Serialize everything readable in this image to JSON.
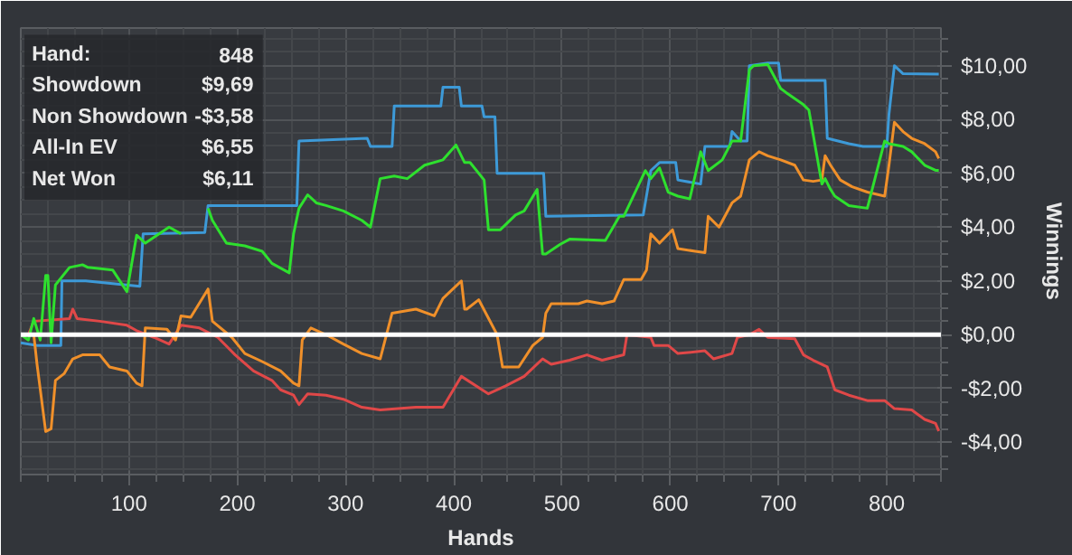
{
  "chart_data": {
    "type": "line",
    "xlabel": "Hands",
    "ylabel": "Winnings",
    "xlim": [
      0,
      850
    ],
    "ylim": [
      -5.2,
      11.4
    ],
    "xticks": [
      100,
      200,
      300,
      400,
      500,
      600,
      700,
      800
    ],
    "yticks": [
      {
        "value": -4,
        "label": "-$4,00"
      },
      {
        "value": -2,
        "label": "-$2,00"
      },
      {
        "value": 0,
        "label": "$0,00"
      },
      {
        "value": 2,
        "label": "$2,00"
      },
      {
        "value": 4,
        "label": "$4,00"
      },
      {
        "value": 6,
        "label": "$6,00"
      },
      {
        "value": 8,
        "label": "$8,00"
      },
      {
        "value": 10,
        "label": "$10,00"
      }
    ],
    "grid": true,
    "ref_lines": [
      {
        "axis": "y",
        "value": 0,
        "color": "#ffffff"
      }
    ],
    "annotations": [
      "Hand:",
      "848",
      "Showdown",
      "$9,69",
      "Non Showdown",
      "-$3,58",
      "All-In EV",
      "$6,55",
      "Net Won",
      "$6,11"
    ],
    "series": [
      {
        "color": "#3d9ad8",
        "x": [
          0,
          15,
          37,
          38,
          60,
          110,
          113,
          170,
          173,
          255,
          257,
          320,
          323,
          343,
          345,
          388,
          390,
          405,
          407,
          426,
          428,
          438,
          440,
          483,
          485,
          575,
          582,
          590,
          605,
          607,
          628,
          632,
          655,
          657,
          665,
          671,
          673,
          690,
          700,
          702,
          743,
          745,
          765,
          778,
          800,
          802,
          807,
          815,
          848
        ],
        "values": [
          -0.3,
          -0.4,
          -0.4,
          2.0,
          2.0,
          1.8,
          3.75,
          3.8,
          4.8,
          4.8,
          7.2,
          7.3,
          7.0,
          7.0,
          8.5,
          8.5,
          9.2,
          9.2,
          8.5,
          8.5,
          8.1,
          8.1,
          6.0,
          6.0,
          4.4,
          4.45,
          6.1,
          6.4,
          6.4,
          5.75,
          5.6,
          7.0,
          7.0,
          7.55,
          7.2,
          7.2,
          10.0,
          10.1,
          10.1,
          9.45,
          9.45,
          7.3,
          7.1,
          7.0,
          7.0,
          8.2,
          10.0,
          9.7,
          9.69
        ]
      },
      {
        "color": "#e04848",
        "x": [
          0,
          7,
          12,
          45,
          48,
          52,
          73,
          98,
          107,
          123,
          137,
          148,
          165,
          182,
          198,
          215,
          232,
          240,
          252,
          257,
          265,
          282,
          298,
          315,
          332,
          365,
          390,
          407,
          432,
          448,
          465,
          482,
          490,
          507,
          523,
          537,
          557,
          560,
          582,
          585,
          598,
          607,
          632,
          640,
          657,
          662,
          673,
          682,
          690,
          715,
          723,
          732,
          745,
          752,
          765,
          782,
          798,
          807,
          823,
          835,
          845,
          848
        ],
        "values": [
          0,
          0,
          0.5,
          0.6,
          0.95,
          0.6,
          0.5,
          0.35,
          0.15,
          -0.1,
          -0.35,
          0.35,
          0.25,
          -0.1,
          -0.75,
          -1.35,
          -1.7,
          -2.05,
          -2.25,
          -2.6,
          -2.2,
          -2.25,
          -2.4,
          -2.7,
          -2.8,
          -2.7,
          -2.7,
          -1.55,
          -2.2,
          -1.9,
          -1.55,
          -0.9,
          -1.1,
          -0.95,
          -0.75,
          -0.95,
          -0.75,
          0,
          -0.1,
          -0.4,
          -0.4,
          -0.7,
          -0.6,
          -0.9,
          -0.7,
          -0.1,
          0,
          0.2,
          -0.1,
          -0.15,
          -0.75,
          -0.95,
          -1.2,
          -2.05,
          -2.25,
          -2.45,
          -2.45,
          -2.75,
          -2.8,
          -3.15,
          -3.3,
          -3.58
        ]
      },
      {
        "color": "#f0902a",
        "x": [
          0,
          12,
          15,
          23,
          28,
          32,
          40,
          48,
          57,
          73,
          82,
          98,
          107,
          112,
          115,
          135,
          143,
          148,
          157,
          173,
          177,
          195,
          207,
          223,
          240,
          252,
          257,
          260,
          268,
          282,
          298,
          315,
          332,
          343,
          365,
          382,
          390,
          407,
          410,
          412,
          423,
          440,
          445,
          460,
          473,
          482,
          485,
          490,
          515,
          523,
          537,
          548,
          557,
          573,
          578,
          582,
          590,
          602,
          607,
          623,
          632,
          635,
          645,
          657,
          665,
          673,
          682,
          690,
          702,
          715,
          723,
          732,
          740,
          743,
          748,
          757,
          768,
          782,
          798,
          802,
          807,
          815,
          823,
          835,
          845,
          848
        ],
        "values": [
          0,
          0,
          -1.1,
          -3.6,
          -3.5,
          -1.7,
          -1.45,
          -0.9,
          -0.75,
          -0.75,
          -1.2,
          -1.35,
          -1.8,
          -1.9,
          0.25,
          0.2,
          -0.2,
          0.7,
          0.65,
          1.7,
          0.5,
          -0.1,
          -0.7,
          -1.0,
          -1.35,
          -1.8,
          -1.9,
          -0.2,
          0.25,
          0,
          -0.35,
          -0.7,
          -0.9,
          0.8,
          0.95,
          0.7,
          1.35,
          2.0,
          0.95,
          0.95,
          1.3,
          0,
          -1.2,
          -1.2,
          -0.4,
          -0.1,
          0.8,
          1.15,
          1.15,
          1.25,
          1.15,
          1.25,
          2.05,
          2.05,
          2.4,
          3.75,
          3.4,
          3.9,
          3.2,
          3.1,
          3.05,
          4.4,
          4.0,
          4.9,
          5.15,
          6.5,
          6.8,
          6.65,
          6.5,
          6.3,
          5.75,
          5.7,
          5.75,
          6.65,
          6.3,
          5.75,
          5.5,
          5.3,
          5.15,
          6.3,
          7.9,
          7.55,
          7.3,
          7.1,
          6.8,
          6.55
        ]
      },
      {
        "color": "#2ee02e",
        "x": [
          0,
          7,
          12,
          18,
          23,
          25,
          28,
          32,
          45,
          57,
          62,
          85,
          98,
          107,
          115,
          137,
          148,
          168,
          173,
          177,
          190,
          207,
          223,
          232,
          248,
          252,
          257,
          265,
          273,
          282,
          298,
          315,
          323,
          332,
          345,
          357,
          373,
          390,
          402,
          410,
          415,
          428,
          432,
          443,
          457,
          465,
          477,
          482,
          485,
          498,
          507,
          540,
          553,
          557,
          577,
          582,
          590,
          598,
          607,
          618,
          628,
          635,
          648,
          657,
          665,
          673,
          677,
          690,
          702,
          707,
          723,
          728,
          740,
          743,
          748,
          752,
          765,
          782,
          798,
          802,
          815,
          823,
          835,
          845,
          848
        ],
        "values": [
          0,
          -0.2,
          0.6,
          -0.2,
          2.2,
          2.2,
          -0.3,
          1.85,
          2.5,
          2.6,
          2.5,
          2.4,
          1.6,
          3.7,
          3.4,
          4.0,
          3.75,
          null,
          4.7,
          4.25,
          3.4,
          3.3,
          3.1,
          2.65,
          2.3,
          3.75,
          4.7,
          5.2,
          4.9,
          4.8,
          4.6,
          4.25,
          4.0,
          5.8,
          5.9,
          5.8,
          6.3,
          6.5,
          7.05,
          6.4,
          6.4,
          5.75,
          3.9,
          3.9,
          4.45,
          4.6,
          5.4,
          3.0,
          3.0,
          3.35,
          3.55,
          3.5,
          4.4,
          4.4,
          6.1,
          5.8,
          6.2,
          5.3,
          5.15,
          5.05,
          6.8,
          6.1,
          6.5,
          7.2,
          7.2,
          9.85,
          10.0,
          10.05,
          9.15,
          9.0,
          8.55,
          8.35,
          5.6,
          5.8,
          5.4,
          5.15,
          4.8,
          4.7,
          7.2,
          7.1,
          7.0,
          6.8,
          6.3,
          6.11,
          6.11
        ]
      }
    ]
  }
}
